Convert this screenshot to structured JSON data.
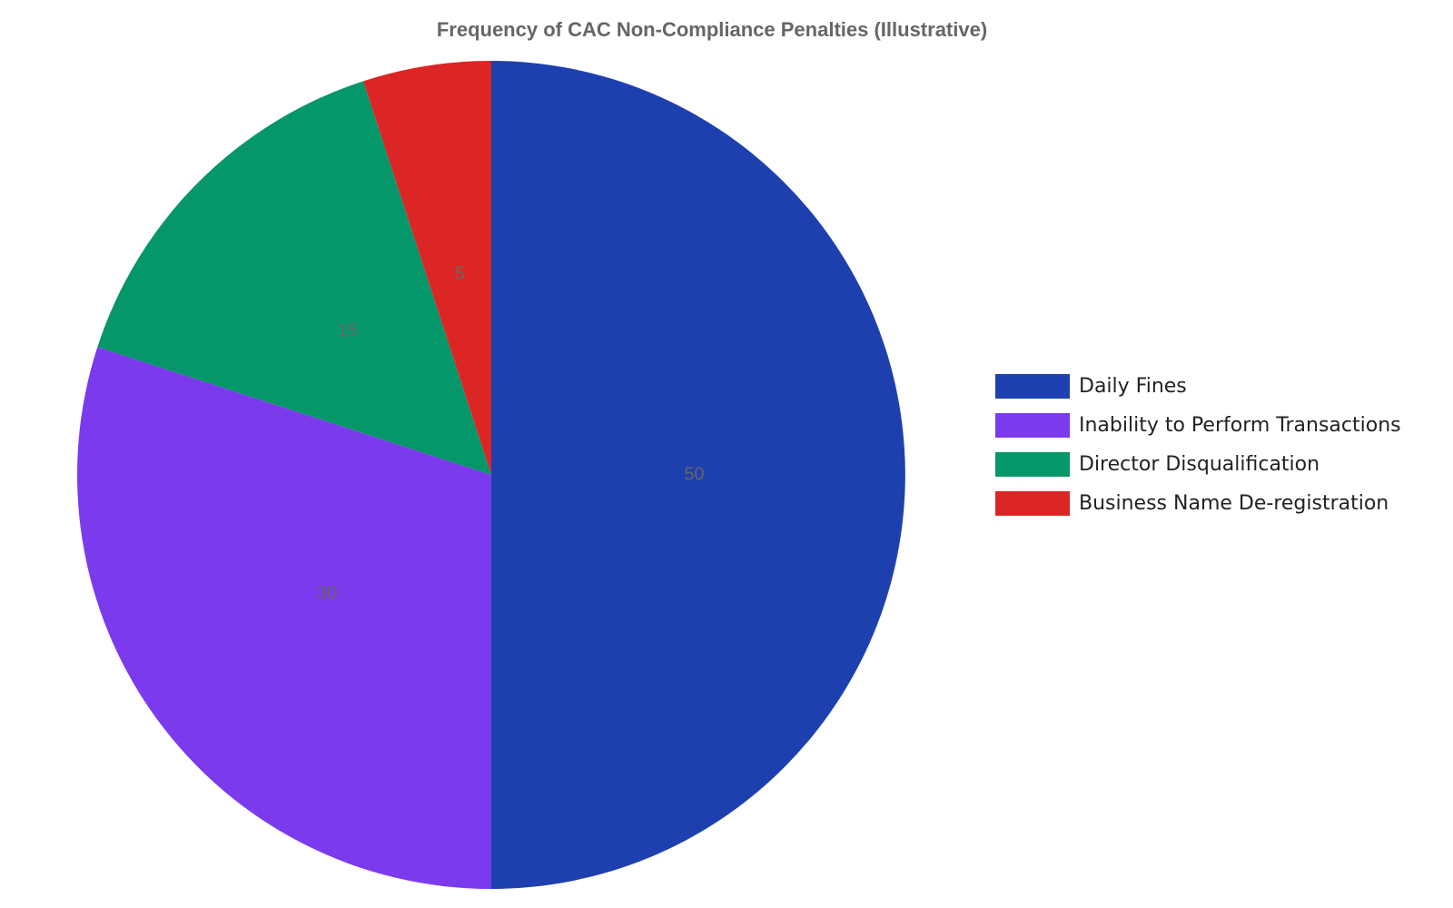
{
  "chart_data": {
    "type": "pie",
    "title": "Frequency of CAC Non-Compliance Penalties (Illustrative)",
    "categories": [
      "Daily Fines",
      "Inability to Perform Transactions",
      "Director Disqualification",
      "Business Name De-registration"
    ],
    "values": [
      50,
      30,
      15,
      5
    ],
    "colors": [
      "#1e40af",
      "#7c3aed",
      "#059669",
      "#dc2626"
    ],
    "legend": "right"
  }
}
